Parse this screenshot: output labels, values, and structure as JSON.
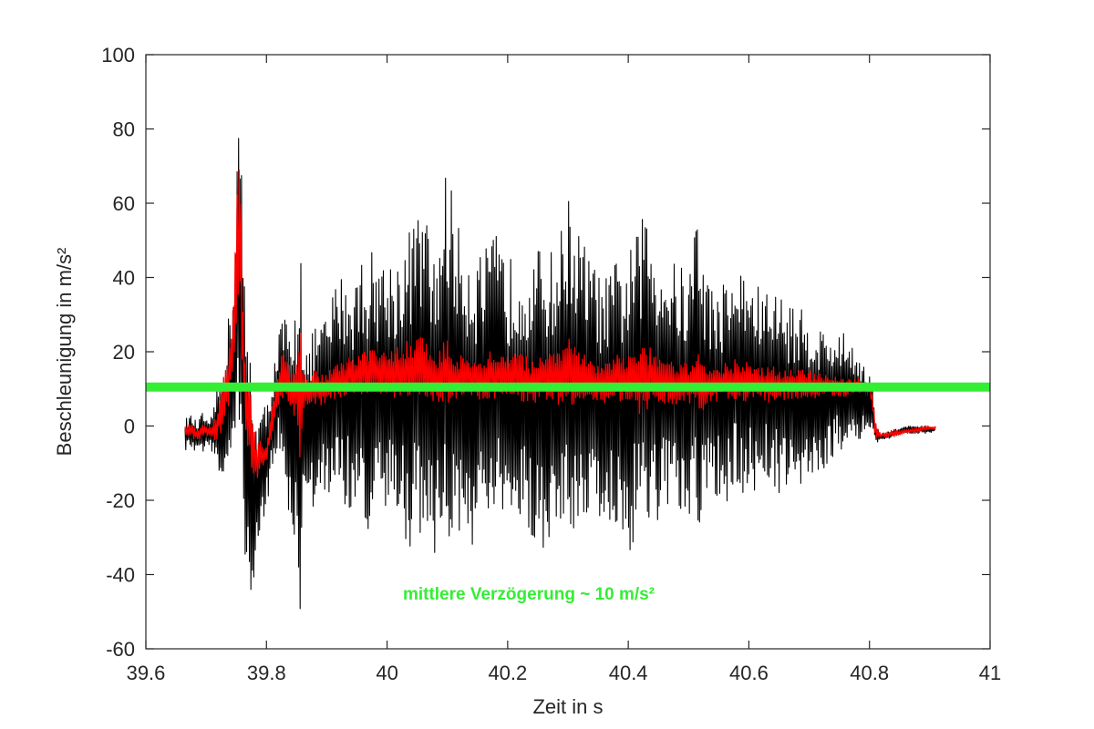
{
  "chart_data": {
    "type": "line",
    "title": "",
    "xlabel": "Zeit in s",
    "ylabel": "Beschleunigung in m/s²",
    "xlim": [
      39.6,
      41
    ],
    "ylim": [
      -60,
      100
    ],
    "xticks": [
      39.6,
      39.8,
      40,
      40.2,
      40.4,
      40.6,
      40.8,
      41
    ],
    "xtick_labels": [
      "39.6",
      "39.8",
      "40",
      "40.2",
      "40.4",
      "40.6",
      "40.8",
      "41"
    ],
    "yticks": [
      -60,
      -40,
      -20,
      0,
      20,
      40,
      60,
      80,
      100
    ],
    "ytick_labels": [
      "-60",
      "-40",
      "-20",
      "0",
      "20",
      "40",
      "60",
      "80",
      "100"
    ],
    "grid": false,
    "box": true,
    "colors": {
      "raw": "#000000",
      "filtered": "#ff0000",
      "mean": "#33ee33",
      "annotation": "#33ee33",
      "axis": "#262626"
    },
    "series": [
      {
        "color": "#000000",
        "x": [
          39.665,
          39.675,
          39.685,
          39.695,
          39.705,
          39.715,
          39.725,
          39.735,
          39.745,
          39.752,
          39.756,
          39.765,
          39.775,
          39.782,
          39.79,
          39.8,
          39.81,
          39.82,
          39.83,
          39.84,
          39.85,
          39.856,
          39.86,
          39.87,
          39.88,
          39.9,
          39.92,
          39.94,
          39.96,
          39.98,
          40.0,
          40.02,
          40.04,
          40.06,
          40.08,
          40.095,
          40.105,
          40.11,
          40.12,
          40.14,
          40.16,
          40.18,
          40.2,
          40.22,
          40.24,
          40.26,
          40.28,
          40.3,
          40.31,
          40.32,
          40.34,
          40.36,
          40.38,
          40.4,
          40.42,
          40.43,
          40.44,
          40.46,
          40.48,
          40.5,
          40.515,
          40.525,
          40.54,
          40.56,
          40.58,
          40.6,
          40.62,
          40.64,
          40.66,
          40.68,
          40.7,
          40.72,
          40.74,
          40.76,
          40.78,
          40.8,
          40.805,
          40.81,
          40.82,
          40.84,
          40.86,
          40.88,
          40.9,
          40.91
        ],
        "y_high": [
          2,
          3,
          1,
          4,
          0,
          8,
          15,
          27,
          40,
          85,
          87,
          30,
          20,
          2,
          5,
          6,
          15,
          25,
          32,
          22,
          35,
          66,
          30,
          20,
          28,
          30,
          42,
          40,
          47,
          48,
          45,
          47,
          55,
          60,
          45,
          68,
          70,
          57,
          53,
          48,
          47,
          52,
          45,
          48,
          45,
          50,
          46,
          63,
          56,
          52,
          45,
          39,
          45,
          47,
          54,
          60,
          53,
          47,
          44,
          42,
          63,
          45,
          37,
          40,
          43,
          41,
          37,
          37,
          35,
          33,
          29,
          27,
          25,
          25,
          21,
          14,
          12,
          0,
          -2,
          -1,
          0,
          0,
          0,
          -1
        ],
        "y_low": [
          -7,
          -6,
          -8,
          -7,
          -5,
          -10,
          -17,
          -12,
          -16,
          -10,
          -12,
          -36,
          -57,
          -40,
          -34,
          -22,
          -12,
          -8,
          -17,
          -27,
          -40,
          -52,
          -30,
          -25,
          -22,
          -20,
          -18,
          -25,
          -28,
          -30,
          -25,
          -28,
          -33,
          -30,
          -35,
          -37,
          -35,
          -28,
          -32,
          -33,
          -31,
          -25,
          -31,
          -28,
          -30,
          -34,
          -29,
          -28,
          -30,
          -25,
          -25,
          -26,
          -28,
          -37,
          -25,
          -26,
          -28,
          -27,
          -23,
          -30,
          -32,
          -24,
          -20,
          -22,
          -18,
          -20,
          -17,
          -16,
          -20,
          -21,
          -12,
          -16,
          -8,
          -6,
          -4,
          -2,
          -2,
          -5,
          -4,
          -3,
          -2,
          -2,
          -2,
          -1
        ]
      },
      {
        "color": "#ff0000",
        "x": [
          39.665,
          39.675,
          39.685,
          39.695,
          39.705,
          39.715,
          39.725,
          39.735,
          39.745,
          39.752,
          39.756,
          39.765,
          39.775,
          39.782,
          39.79,
          39.8,
          39.81,
          39.82,
          39.83,
          39.84,
          39.85,
          39.856,
          39.86,
          39.87,
          39.88,
          39.9,
          39.92,
          39.94,
          39.96,
          39.98,
          40.0,
          40.02,
          40.04,
          40.06,
          40.08,
          40.095,
          40.105,
          40.11,
          40.12,
          40.14,
          40.16,
          40.18,
          40.2,
          40.22,
          40.24,
          40.26,
          40.28,
          40.3,
          40.31,
          40.32,
          40.34,
          40.36,
          40.38,
          40.4,
          40.42,
          40.43,
          40.44,
          40.46,
          40.48,
          40.5,
          40.515,
          40.525,
          40.54,
          40.56,
          40.58,
          40.6,
          40.62,
          40.64,
          40.66,
          40.68,
          40.7,
          40.72,
          40.74,
          40.76,
          40.78,
          40.8,
          40.805,
          40.81,
          40.82,
          40.84,
          40.86,
          40.88,
          40.9,
          40.91
        ],
        "y_high": [
          0,
          1,
          -1,
          2,
          -1,
          3,
          10,
          20,
          33,
          68,
          72,
          15,
          8,
          -5,
          -4,
          -5,
          8,
          17,
          22,
          15,
          19,
          33,
          18,
          12,
          15,
          14,
          18,
          19,
          20,
          21,
          20,
          22,
          24,
          25,
          18,
          23,
          24,
          20,
          19,
          19,
          19,
          22,
          19,
          20,
          18,
          21,
          19,
          25,
          22,
          20,
          18,
          17,
          19,
          20,
          23,
          22,
          21,
          19,
          18,
          17,
          20,
          17,
          16,
          17,
          18,
          17,
          16,
          16,
          15,
          16,
          15,
          14,
          14,
          13,
          13,
          11,
          9,
          1,
          -2,
          -1,
          -1,
          0,
          0,
          0
        ],
        "y_low": [
          -3,
          -3,
          -4,
          -3,
          -3,
          -5,
          -2,
          3,
          10,
          20,
          25,
          -5,
          -12,
          -15,
          -12,
          -10,
          -2,
          5,
          8,
          3,
          0,
          -15,
          3,
          6,
          5,
          6,
          7,
          8,
          8,
          9,
          7,
          8,
          6,
          8,
          5,
          7,
          6,
          5,
          7,
          8,
          6,
          7,
          8,
          6,
          5,
          7,
          6,
          5,
          6,
          7,
          6,
          5,
          6,
          5,
          3,
          4,
          6,
          6,
          5,
          6,
          5,
          4,
          6,
          7,
          6,
          7,
          7,
          6,
          7,
          7,
          7,
          8,
          8,
          8,
          9,
          9,
          5,
          -4,
          -3,
          -3,
          -2,
          -2,
          -1,
          -1
        ]
      }
    ],
    "mean_line": {
      "y": 10.5
    },
    "annotation": {
      "text": "mittlere Verzögerung ~ 10 m/s²",
      "x": 40.235,
      "y": -45
    }
  }
}
